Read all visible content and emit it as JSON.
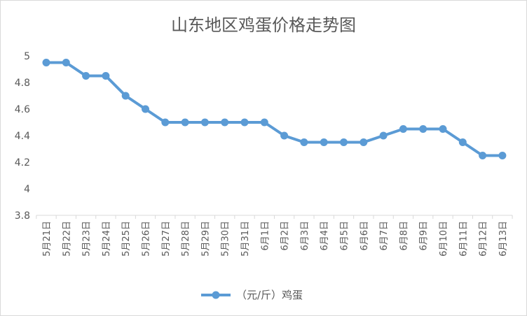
{
  "chart_data": {
    "type": "line",
    "title": "山东地区鸡蛋价格走势图",
    "categories": [
      "5月21日",
      "5月22日",
      "5月23日",
      "5月24日",
      "5月25日",
      "5月26日",
      "5月27日",
      "5月28日",
      "5月29日",
      "5月30日",
      "5月31日",
      "6月1日",
      "6月2日",
      "6月3日",
      "6月4日",
      "6月5日",
      "6月6日",
      "6月7日",
      "6月8日",
      "6月9日",
      "6月10日",
      "6月11日",
      "6月12日",
      "6月13日"
    ],
    "series": [
      {
        "name": "（元/斤）鸡蛋",
        "color": "#5b9bd5",
        "values": [
          4.95,
          4.95,
          4.85,
          4.85,
          4.7,
          4.6,
          4.5,
          4.5,
          4.5,
          4.5,
          4.5,
          4.5,
          4.4,
          4.35,
          4.35,
          4.35,
          4.35,
          4.4,
          4.45,
          4.45,
          4.45,
          4.35,
          4.25,
          4.25
        ]
      }
    ],
    "yticks": [
      "3.8",
      "4",
      "4.2",
      "4.4",
      "4.6",
      "4.8",
      "5"
    ],
    "ylim": [
      3.8,
      5
    ],
    "grid": false,
    "legend_position": "bottom"
  }
}
